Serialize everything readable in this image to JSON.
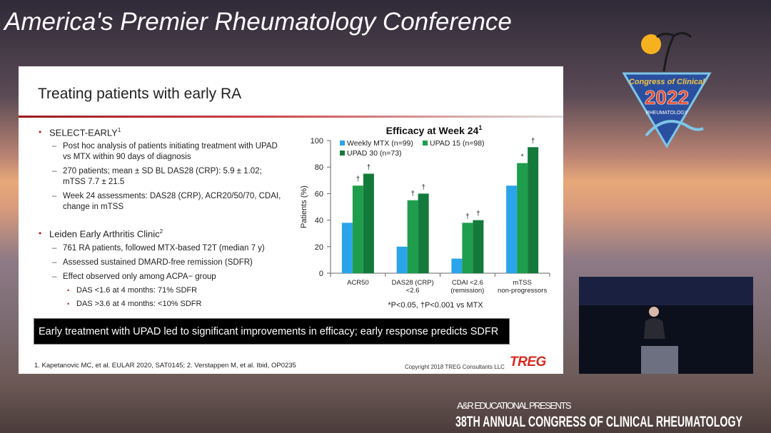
{
  "banner": {
    "title": "America's Premier Rheumatology Conference"
  },
  "logo": {
    "line1": "Congress of Clinical",
    "year": "2022",
    "line2": "RHEUMATOLOGY"
  },
  "slide": {
    "title": "Treating patients with early RA",
    "bullets": [
      {
        "text": "SELECT-EARLY",
        "sup": "1",
        "items": [
          {
            "text": "Post hoc analysis of patients initiating treatment with UPAD vs MTX within 90 days of diagnosis"
          },
          {
            "text": "270 patients; mean ± SD BL DAS28 (CRP): 5.9 ± 1.02; mTSS 7.7 ± 21.5"
          },
          {
            "text": "Week 24 assessments: DAS28 (CRP), ACR20/50/70, CDAI, change in mTSS"
          }
        ]
      },
      {
        "text": "Leiden Early Arthritis Clinic",
        "sup": "2",
        "items": [
          {
            "text": "761 RA patients, followed MTX-based T2T (median 7 y)"
          },
          {
            "text": "Assessed sustained DMARD-free remission (SDFR)"
          },
          {
            "text": "Effect observed only among ACPA− group",
            "items": [
              {
                "text": "DAS <1.6 at 4 months: 71% SDFR"
              },
              {
                "text": "DAS >3.6 at 4 months: <10% SDFR"
              }
            ]
          }
        ]
      }
    ],
    "conclusion": "Early treatment with UPAD led to significant improvements in efficacy; early response predicts SDFR",
    "references": "1. Kapetanovic MC, et al. EULAR 2020, SAT0145; 2. Verstappen M, et al. Ibid, OP0235",
    "copyright": "Copyright 2018 TREG Consultants LLC",
    "brand": "TREG"
  },
  "chart_data": {
    "type": "bar",
    "title": "Efficacy at Week 24",
    "title_sup": "1",
    "ylabel": "Patients (%)",
    "categories": [
      "ACR50",
      "DAS28 (CRP)\n<2.6",
      "CDAI <2.6\n(remission)",
      "mTSS\nnon-progressors"
    ],
    "series": [
      {
        "name": "Weekly MTX (n=99)",
        "color": "#2aa4ea",
        "values": [
          38,
          20,
          11,
          66
        ]
      },
      {
        "name": "UPAD 15 (n=98)",
        "color": "#1e9e4c",
        "values": [
          66,
          55,
          38,
          83
        ],
        "markers": [
          "†",
          "†",
          "†",
          "*"
        ]
      },
      {
        "name": "UPAD 30 (n=73)",
        "color": "#137a3b",
        "values": [
          75,
          60,
          40,
          95
        ],
        "markers": [
          "†",
          "†",
          "†",
          "†"
        ]
      }
    ],
    "ylim": [
      0,
      100
    ],
    "yticks": [
      0,
      20,
      40,
      60,
      80,
      100
    ],
    "footnote": "*P<0.05, †P<0.001 vs MTX"
  },
  "lower_third": {
    "presenter": "A&R EDUCATIONAL PRESENTS",
    "event": "38TH ANNUAL CONGRESS OF CLINICAL RHEUMATOLOGY"
  }
}
